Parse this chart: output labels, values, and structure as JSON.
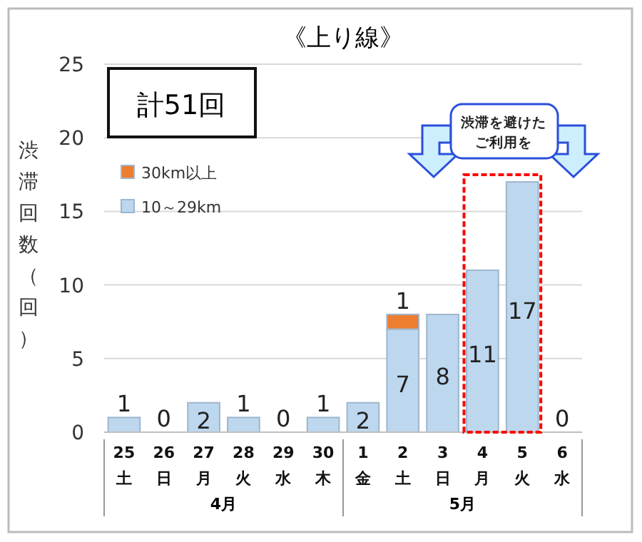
{
  "chart_data": {
    "type": "bar",
    "stacked": true,
    "title": "《上り線》",
    "ylabel": "渋滞回数（回）",
    "categories": [
      "25\n土",
      "26\n日",
      "27\n月",
      "28\n火",
      "29\n水",
      "30\n木",
      "1\n金",
      "2\n土",
      "3\n日",
      "4\n月",
      "5\n火",
      "6\n水"
    ],
    "series": [
      {
        "name": "10～29km",
        "color": "#bdd7ee",
        "values": [
          1,
          0,
          2,
          1,
          0,
          1,
          2,
          7,
          8,
          11,
          17,
          0
        ],
        "value_labels": [
          "1",
          "0",
          "2",
          "1",
          "0",
          "1",
          "2",
          "7",
          "8",
          "11",
          "17",
          "0"
        ]
      },
      {
        "name": "30km以上",
        "color": "#ed7d31",
        "values": [
          0,
          0,
          0,
          0,
          0,
          0,
          0,
          1,
          0,
          0,
          0,
          0
        ],
        "value_labels": [
          null,
          null,
          null,
          null,
          null,
          null,
          null,
          "1",
          null,
          null,
          null,
          null
        ]
      }
    ],
    "ylim": [
      0,
      25
    ],
    "yticks": [
      0,
      5,
      10,
      15,
      20,
      25
    ],
    "grid": "y",
    "legend": "top left",
    "annotations": [
      "計51回",
      "渋滞を避けた",
      "ご利用を",
      "4月",
      "5月"
    ]
  }
}
